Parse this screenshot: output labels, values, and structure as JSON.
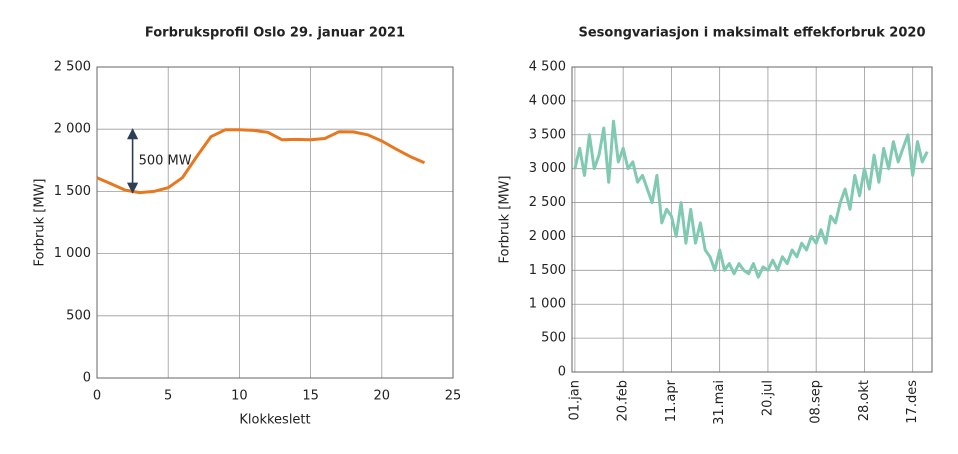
{
  "chart_data": [
    {
      "type": "line",
      "title": "Forbruksprofil Oslo 29. januar 2021",
      "xlabel": "Klokkeslett",
      "ylabel": "Forbruk [MW]",
      "x": [
        0,
        1,
        2,
        3,
        4,
        5,
        6,
        7,
        8,
        9,
        10,
        11,
        12,
        13,
        14,
        15,
        16,
        17,
        18,
        19,
        20,
        21,
        22,
        23
      ],
      "series": [
        {
          "color": "#e8781f",
          "values": [
            1610,
            1560,
            1510,
            1490,
            1500,
            1530,
            1610,
            1780,
            1940,
            1995,
            1995,
            1990,
            1975,
            1915,
            1918,
            1915,
            1925,
            1980,
            1978,
            1955,
            1905,
            1840,
            1780,
            1730
          ]
        }
      ],
      "xlim": [
        0,
        25
      ],
      "xticks": [
        0,
        5,
        10,
        15,
        20,
        25
      ],
      "ylim": [
        0,
        2500
      ],
      "yticks": [
        0,
        500,
        {
          "value": 1000,
          "label": "1 000"
        },
        {
          "value": 1500,
          "label": "1 500"
        },
        {
          "value": 2000,
          "label": "2 000"
        },
        {
          "value": 2500,
          "label": "2 500"
        }
      ],
      "grid": true,
      "annotation": {
        "text": "500 MW",
        "x": 2.5,
        "from": 1490,
        "to": 2000
      }
    },
    {
      "type": "line",
      "title": "Sesongvariasjon i maksimalt effekforbruk 2020",
      "ylabel": "Forbruk [MW]",
      "x": [
        0,
        5,
        10,
        15,
        20,
        25,
        30,
        35,
        40,
        45,
        50,
        55,
        60,
        65,
        70,
        75,
        80,
        85,
        90,
        95,
        100,
        105,
        110,
        115,
        120,
        125,
        130,
        135,
        140,
        145,
        150,
        155,
        160,
        165,
        170,
        175,
        180,
        185,
        190,
        195,
        200,
        205,
        210,
        215,
        220,
        225,
        230,
        235,
        240,
        245,
        250,
        255,
        260,
        265,
        270,
        275,
        280,
        285,
        290,
        295,
        300,
        305,
        310,
        315,
        320,
        325,
        330,
        335,
        340,
        345,
        350,
        355,
        360,
        365
      ],
      "series": [
        {
          "color": "#7fcab0",
          "values": [
            3000,
            3300,
            2900,
            3500,
            3000,
            3200,
            3600,
            2800,
            3700,
            3100,
            3300,
            3000,
            3100,
            2800,
            2900,
            2700,
            2500,
            2900,
            2200,
            2400,
            2300,
            2000,
            2500,
            1900,
            2400,
            1900,
            2200,
            1800,
            1700,
            1500,
            1800,
            1500,
            1600,
            1450,
            1600,
            1500,
            1450,
            1600,
            1400,
            1550,
            1500,
            1650,
            1500,
            1700,
            1600,
            1800,
            1700,
            1900,
            1800,
            2000,
            1900,
            2100,
            1900,
            2300,
            2200,
            2500,
            2700,
            2400,
            2900,
            2600,
            3000,
            2700,
            3200,
            2800,
            3300,
            3000,
            3400,
            3100,
            3300,
            3500,
            2900,
            3400,
            3100,
            3250
          ]
        }
      ],
      "xlim": [
        -3,
        370
      ],
      "xticks": [
        {
          "value": 0,
          "label": "01.jan"
        },
        {
          "value": 50,
          "label": "20.feb"
        },
        {
          "value": 100,
          "label": "11.apr"
        },
        {
          "value": 150,
          "label": "31.mai"
        },
        {
          "value": 200,
          "label": "20.jul"
        },
        {
          "value": 250,
          "label": "08.sep"
        },
        {
          "value": 300,
          "label": "28.okt"
        },
        {
          "value": 350,
          "label": "17.des"
        }
      ],
      "ylim": [
        0,
        4500
      ],
      "yticks": [
        0,
        500,
        {
          "value": 1000,
          "label": "1 000"
        },
        {
          "value": 1500,
          "label": "1 500"
        },
        {
          "value": 2000,
          "label": "2 000"
        },
        {
          "value": 2500,
          "label": "2 500"
        },
        {
          "value": 3000,
          "label": "3 000"
        },
        {
          "value": 3500,
          "label": "3 500"
        },
        {
          "value": 4000,
          "label": "4 000"
        },
        {
          "value": 4500,
          "label": "4 500"
        }
      ],
      "grid": true,
      "rotate_xticks": true
    }
  ]
}
